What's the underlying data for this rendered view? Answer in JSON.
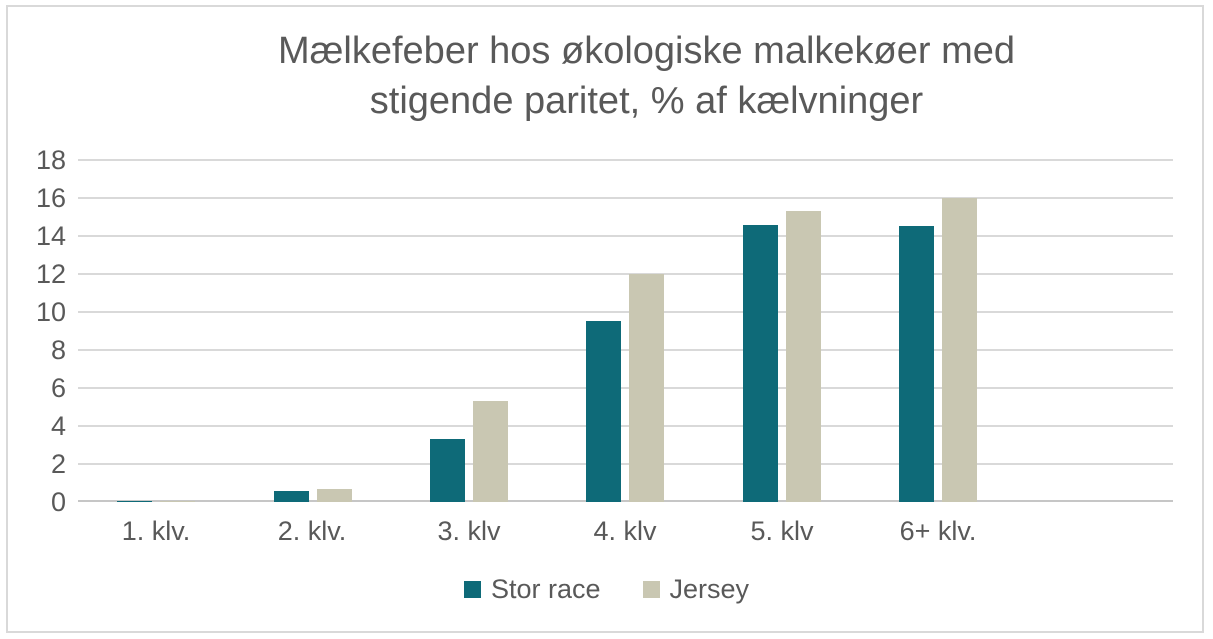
{
  "window": {
    "background": "#ffffff",
    "border_color": "#d9d9d9"
  },
  "chart_data": {
    "type": "bar",
    "title": "Mælkefeber hos økologiske malkekøer med stigende paritet, % af kælvninger",
    "title_lines": [
      "Mælkefeber hos økologiske malkekøer med",
      "stigende paritet, % af kælvninger"
    ],
    "categories": [
      "1. klv.",
      "2. klv.",
      "3. klv",
      "4. klv",
      "5. klv",
      "6+ klv."
    ],
    "series": [
      {
        "name": "Stor race",
        "color": "#0e6a78",
        "values": [
          0.05,
          0.6,
          3.3,
          9.5,
          14.6,
          14.5
        ]
      },
      {
        "name": "Jersey",
        "color": "#c9c7b2",
        "values": [
          0.05,
          0.7,
          5.3,
          12.0,
          15.3,
          16.0
        ]
      }
    ],
    "xlabel": "",
    "ylabel": "",
    "ylim": [
      0,
      18
    ],
    "yticks": [
      0,
      2,
      4,
      6,
      8,
      10,
      12,
      14,
      16,
      18
    ],
    "grid": "horizontal",
    "gridline_color": "#d9d9d9",
    "axis_text_color": "#595959",
    "title_color": "#595959",
    "legend_position": "bottom",
    "extra_empty_category_slots": 1
  }
}
